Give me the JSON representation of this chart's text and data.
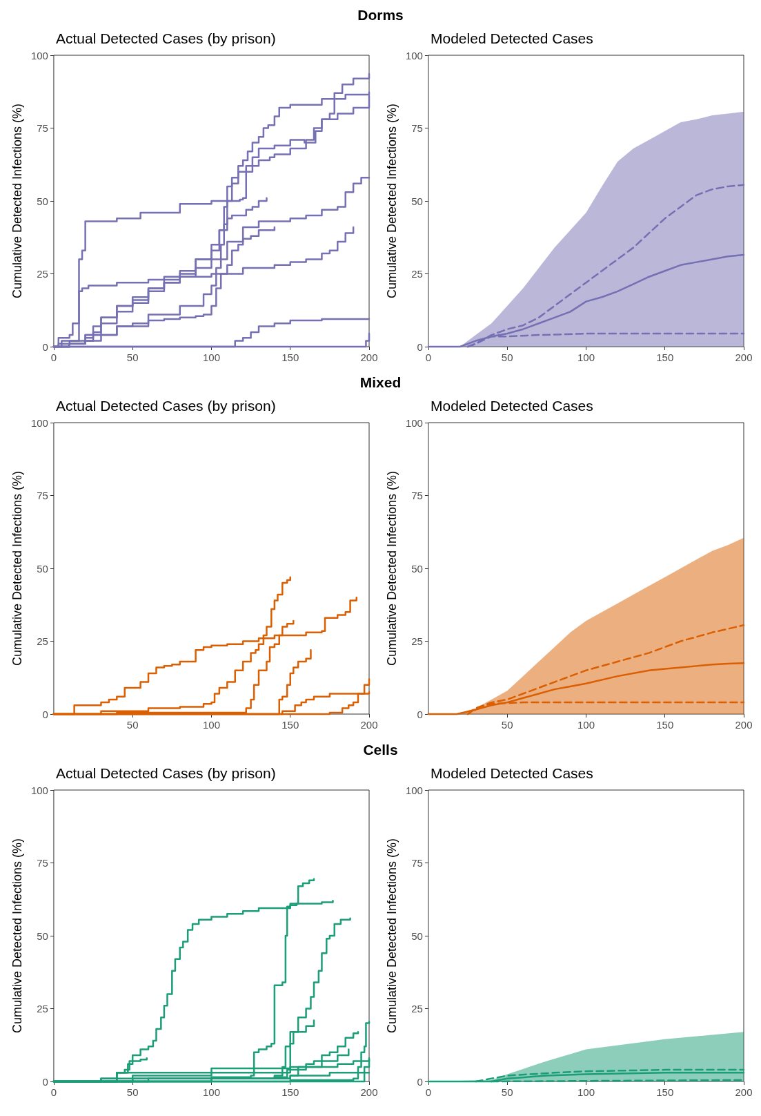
{
  "chart_data": [
    {
      "type": "step",
      "title": "Dorms",
      "subtitle": "Actual Detected Cases (by prison)",
      "ylabel": "Cumulative Detected Infections (%)",
      "xlim": [
        0,
        200
      ],
      "ylim": [
        0,
        100
      ],
      "xticks": [
        0,
        50,
        100,
        150,
        200
      ],
      "yticks": [
        0,
        25,
        50,
        75,
        100
      ],
      "marker": "none",
      "series": [
        {
          "color": "#7570b3",
          "x": [
            0,
            5,
            20,
            40,
            60,
            80,
            95,
            100,
            103,
            106,
            108,
            110,
            113,
            117,
            120,
            123,
            126,
            130,
            133,
            136,
            140,
            143,
            150,
            170,
            185,
            200
          ],
          "values": [
            0,
            2,
            4,
            7,
            11,
            14,
            18,
            21,
            27,
            35,
            48,
            55,
            58,
            62,
            64,
            67,
            70,
            72,
            75,
            76,
            79,
            82,
            83,
            85,
            86.5,
            87.3
          ]
        },
        {
          "color": "#7570b3",
          "x": [
            0,
            3,
            10,
            12,
            15,
            16,
            18,
            20,
            40,
            55,
            80,
            100,
            118,
            120,
            122,
            126,
            130,
            140,
            150,
            156,
            159,
            163,
            166,
            170,
            175,
            178,
            183,
            190,
            200
          ],
          "values": [
            0,
            3,
            4,
            8,
            8,
            30,
            33,
            43,
            44,
            46,
            49,
            50,
            50.5,
            51,
            60,
            65,
            68,
            69,
            71,
            71,
            70,
            70,
            74,
            78,
            80,
            87,
            90,
            92,
            93.6
          ]
        },
        {
          "color": "#7570b3",
          "x": [
            0,
            10,
            20,
            25,
            30,
            40,
            50,
            60,
            70,
            80,
            90,
            100,
            105,
            110,
            113,
            117,
            122,
            130,
            137,
            140,
            150,
            160,
            165,
            170,
            180,
            190,
            200
          ],
          "values": [
            0,
            1,
            3,
            5,
            10,
            14,
            16,
            20,
            24,
            26,
            30,
            33,
            40,
            50,
            56,
            60,
            62,
            64,
            65,
            66,
            68,
            71,
            75,
            78,
            80,
            82,
            86
          ]
        },
        {
          "color": "#7570b3",
          "x": [
            0,
            10,
            20,
            25,
            30,
            40,
            50,
            60,
            70,
            80,
            90,
            100,
            105,
            108,
            110,
            113,
            118,
            122,
            126,
            130,
            135
          ],
          "values": [
            0,
            1,
            2,
            4,
            8,
            12,
            15,
            19,
            22,
            25,
            30,
            35,
            40,
            42,
            44,
            45,
            45,
            47,
            48,
            50,
            51
          ]
        },
        {
          "color": "#7570b3",
          "x": [
            0,
            3,
            10,
            15,
            16,
            18,
            22,
            40,
            60,
            80,
            100,
            120,
            140,
            150,
            160,
            170,
            175,
            180,
            185,
            190
          ],
          "values": [
            0,
            1,
            2,
            2,
            19,
            20,
            21,
            22,
            23,
            24,
            25,
            27,
            28,
            29,
            30,
            32,
            33,
            36,
            39,
            41
          ]
        },
        {
          "color": "#7570b3",
          "x": [
            0,
            10,
            20,
            25,
            30,
            40,
            50,
            60,
            70,
            80,
            90,
            100,
            110,
            120,
            130,
            150,
            160,
            170,
            180,
            185,
            190,
            195,
            200
          ],
          "values": [
            0,
            1,
            4,
            7,
            10,
            14,
            17,
            20,
            22,
            24,
            27,
            30,
            36,
            41,
            43,
            44,
            45,
            47,
            48,
            53,
            56,
            58,
            58
          ]
        },
        {
          "color": "#7570b3",
          "x": [
            0,
            10,
            20,
            30,
            40,
            50,
            60,
            70,
            80,
            90,
            95,
            100,
            103,
            106,
            110,
            113,
            117,
            120,
            125,
            130,
            140
          ],
          "values": [
            0,
            1,
            2,
            4,
            7,
            8,
            9,
            9.5,
            10,
            10.5,
            11,
            14,
            20,
            25,
            28,
            33,
            35,
            37,
            38,
            40,
            41
          ]
        },
        {
          "color": "#7570b3",
          "x": [
            0,
            113,
            115,
            120,
            125,
            130,
            140,
            150,
            170,
            200
          ],
          "values": [
            0,
            0,
            2,
            3,
            5,
            7,
            8,
            9,
            9.5,
            9.5
          ]
        },
        {
          "color": "#7570b3",
          "x": [
            0,
            196,
            198,
            200
          ],
          "values": [
            0,
            0,
            2,
            4.5
          ]
        }
      ]
    },
    {
      "type": "line",
      "subtitle": "Modeled Detected Cases",
      "ylabel": "Cumulative Detected Infections (%)",
      "xlim": [
        0,
        200
      ],
      "ylim": [
        0,
        100
      ],
      "xticks": [
        0,
        50,
        100,
        150,
        200
      ],
      "yticks": [
        0,
        25,
        50,
        75,
        100
      ],
      "marker": "none",
      "series": [
        {
          "color": "#7570b3",
          "line_style": "solid",
          "x": [
            0,
            20,
            30,
            40,
            50,
            60,
            70,
            80,
            90,
            100,
            110,
            120,
            130,
            140,
            150,
            160,
            170,
            180,
            190,
            200
          ],
          "values": [
            0,
            0,
            2,
            3.5,
            4.5,
            6,
            8,
            10,
            12,
            15.5,
            17,
            19,
            21.5,
            24,
            26,
            28,
            29,
            30,
            31,
            31.5
          ],
          "lower": [
            0,
            0,
            0,
            0,
            0,
            0,
            0,
            0,
            0,
            0,
            0,
            0,
            0,
            0,
            0,
            0,
            0,
            0,
            0,
            0
          ],
          "upper": [
            0,
            0,
            4,
            8,
            14,
            20,
            27,
            34,
            40,
            46,
            55,
            63.5,
            68,
            71,
            74,
            77,
            78,
            79.4,
            80,
            80.6
          ]
        },
        {
          "color": "#7570b3",
          "line_style": "dashed",
          "x": [
            25,
            30,
            40,
            50,
            60,
            70,
            80,
            90,
            100,
            110,
            120,
            130,
            140,
            150,
            160,
            170,
            180,
            190,
            200
          ],
          "values": [
            0,
            1,
            4,
            6,
            7.3,
            10,
            14,
            18,
            22,
            26,
            30,
            34,
            39,
            44,
            48,
            52,
            54,
            55,
            55.5
          ]
        },
        {
          "color": "#7570b3",
          "line_style": "dashed",
          "x": [
            25,
            30,
            40,
            50,
            70,
            100,
            200
          ],
          "values": [
            0,
            1,
            3.5,
            3.5,
            4,
            4.5,
            4.5
          ]
        }
      ]
    },
    {
      "type": "step",
      "title": "Mixed",
      "subtitle": "Actual Detected Cases (by prison)",
      "ylabel": "Cumulative Detected Infections (%)",
      "xlim": [
        0,
        200
      ],
      "ylim": [
        0,
        100
      ],
      "xticks": [
        50,
        100,
        150,
        200
      ],
      "yticks": [
        0,
        25,
        50,
        75,
        100
      ],
      "marker": "none",
      "series": [
        {
          "color": "#d95f02",
          "x": [
            0,
            10,
            13,
            25,
            30,
            35,
            40,
            45,
            50,
            55,
            60,
            65,
            70,
            75,
            80,
            85,
            90,
            95,
            100,
            110,
            120,
            130,
            140,
            160,
            170,
            172,
            180,
            185,
            188,
            192
          ],
          "values": [
            0,
            0,
            3,
            3,
            4,
            5,
            6,
            9,
            9,
            11,
            14,
            16,
            16.5,
            17,
            18,
            18,
            22,
            23,
            23.5,
            24,
            25,
            26,
            27,
            28,
            28.5,
            33,
            34,
            35,
            39,
            40
          ]
        },
        {
          "color": "#d95f02",
          "x": [
            0,
            30,
            60,
            80,
            95,
            100,
            102,
            105,
            110,
            115,
            120,
            125,
            128,
            130,
            133,
            135,
            138,
            140,
            142,
            145,
            148,
            150
          ],
          "values": [
            0,
            1,
            2,
            2.5,
            3.5,
            4,
            7,
            9,
            11,
            15,
            18,
            21,
            22,
            24,
            27,
            30,
            36,
            39,
            41,
            45,
            46,
            47
          ]
        },
        {
          "color": "#d95f02",
          "x": [
            0,
            40,
            100,
            119,
            122,
            125,
            127,
            130,
            135,
            137,
            140,
            143,
            145,
            148,
            152
          ],
          "values": [
            0,
            0.5,
            0.5,
            0.5,
            2,
            5,
            10,
            15,
            18,
            23,
            24,
            27,
            30,
            31,
            32
          ]
        },
        {
          "color": "#d95f02",
          "x": [
            0,
            142,
            143,
            145,
            148,
            150,
            152,
            155,
            160,
            163
          ],
          "values": [
            0,
            0,
            5,
            6,
            10,
            14,
            16,
            18,
            19,
            22
          ]
        },
        {
          "color": "#d95f02",
          "x": [
            0,
            140,
            145,
            150,
            153,
            157,
            160,
            165,
            170,
            175,
            200
          ],
          "values": [
            0,
            0,
            1,
            1,
            3,
            4,
            5,
            6,
            6,
            7,
            7.5
          ]
        },
        {
          "color": "#d95f02",
          "x": [
            0,
            160,
            175,
            183,
            187,
            190,
            193,
            197,
            200
          ],
          "values": [
            0,
            0,
            0.5,
            2,
            3,
            4,
            7,
            10,
            12
          ]
        }
      ]
    },
    {
      "type": "line",
      "subtitle": "Modeled Detected Cases",
      "ylabel": "Cumulative Detected Infections (%)",
      "xlim": [
        0,
        200
      ],
      "ylim": [
        0,
        100
      ],
      "xticks": [
        50,
        100,
        150,
        200
      ],
      "yticks": [
        0,
        25,
        50,
        75,
        100
      ],
      "marker": "none",
      "series": [
        {
          "color": "#d95f02",
          "line_style": "solid",
          "x": [
            0,
            18,
            30,
            40,
            50,
            60,
            70,
            80,
            90,
            100,
            120,
            140,
            150,
            160,
            170,
            180,
            190,
            200
          ],
          "values": [
            0,
            0,
            1.5,
            3,
            4,
            5.5,
            7,
            8.5,
            9.5,
            10.5,
            13,
            15,
            15.5,
            16,
            16.5,
            17,
            17.3,
            17.5
          ],
          "lower": [
            0,
            0,
            0,
            0,
            0,
            0,
            0,
            0,
            0,
            0,
            0,
            0,
            0,
            0,
            0,
            0,
            0,
            0
          ],
          "upper": [
            0,
            0,
            2,
            5,
            8,
            13,
            18,
            23,
            28,
            32,
            38,
            44,
            47,
            50,
            53,
            56,
            58,
            60.5
          ]
        },
        {
          "color": "#d95f02",
          "line_style": "dashed",
          "x": [
            25,
            30,
            40,
            50,
            60,
            80,
            100,
            120,
            140,
            160,
            180,
            200
          ],
          "values": [
            0,
            2,
            4,
            5,
            7,
            11,
            15,
            18,
            21,
            25,
            28,
            30.5
          ]
        },
        {
          "color": "#d95f02",
          "line_style": "dashed",
          "x": [
            25,
            30,
            40,
            60,
            200
          ],
          "values": [
            0,
            2,
            3.5,
            4,
            4
          ]
        }
      ]
    },
    {
      "type": "step",
      "title": "Cells",
      "subtitle": "Actual Detected Cases (by prison)",
      "ylabel": "Cumulative Detected Infections (%)",
      "xlim": [
        0,
        200
      ],
      "ylim": [
        0,
        100
      ],
      "xticks": [
        0,
        50,
        100,
        150,
        200
      ],
      "yticks": [
        0,
        25,
        50,
        75,
        100
      ],
      "marker": "none",
      "series": [
        {
          "color": "#1b9e77",
          "x": [
            0,
            30,
            40,
            45,
            48,
            50,
            55,
            60,
            63,
            65,
            68,
            70,
            72,
            75,
            77,
            80,
            82,
            85,
            88,
            92,
            100,
            110,
            120,
            130,
            150,
            170,
            177
          ],
          "values": [
            0,
            1,
            3,
            4,
            7,
            9,
            11,
            12,
            14,
            18,
            22,
            26,
            30,
            38,
            42,
            46,
            48,
            52,
            54,
            55.5,
            56.5,
            57.5,
            58.5,
            59.5,
            61,
            61.5,
            62
          ]
        },
        {
          "color": "#1b9e77",
          "x": [
            0,
            40,
            100,
            125,
            127,
            130,
            135,
            138,
            140,
            145,
            147,
            148,
            150,
            154,
            155,
            158,
            162,
            165
          ],
          "values": [
            0,
            1,
            1.5,
            2,
            10,
            11,
            12,
            13,
            33,
            34,
            50,
            60,
            60.5,
            61,
            67,
            68,
            69,
            69.5
          ]
        },
        {
          "color": "#1b9e77",
          "x": [
            0,
            60,
            140,
            148,
            150,
            152,
            155,
            160,
            163,
            165,
            168,
            170,
            173,
            175,
            178,
            182,
            188
          ],
          "values": [
            0,
            1,
            1.5,
            4,
            13,
            17,
            22,
            25,
            29,
            34,
            38,
            44,
            49,
            50,
            54,
            55.5,
            56
          ]
        },
        {
          "color": "#1b9e77",
          "x": [
            0,
            30,
            40,
            47,
            50,
            55,
            59
          ],
          "values": [
            0,
            1,
            3,
            6,
            7,
            7.5,
            8
          ]
        },
        {
          "color": "#1b9e77",
          "x": [
            0,
            100,
            140,
            145,
            147,
            150,
            160,
            165
          ],
          "values": [
            0,
            1,
            2,
            5,
            12,
            17,
            19,
            21
          ]
        },
        {
          "color": "#1b9e77",
          "x": [
            0,
            100,
            150,
            155,
            160,
            165,
            170,
            175,
            180,
            185,
            190,
            193
          ],
          "values": [
            0,
            1,
            2,
            5,
            6,
            7,
            9,
            10,
            12,
            15,
            16.5,
            17
          ]
        },
        {
          "color": "#1b9e77",
          "x": [
            0,
            150,
            190,
            193,
            195,
            197,
            198,
            200
          ],
          "values": [
            0,
            0.5,
            1,
            5,
            10,
            12,
            20,
            20.5
          ]
        },
        {
          "color": "#1b9e77",
          "x": [
            0,
            50,
            100,
            150,
            160,
            170,
            180,
            187
          ],
          "values": [
            0,
            2,
            3,
            4,
            5,
            7,
            9,
            11
          ]
        },
        {
          "color": "#1b9e77",
          "x": [
            0,
            40,
            100,
            150,
            180,
            190,
            200
          ],
          "values": [
            0,
            3,
            4.5,
            5,
            6,
            7,
            8
          ]
        },
        {
          "color": "#1b9e77",
          "x": [
            0,
            50,
            150,
            175,
            200
          ],
          "values": [
            0,
            1,
            2,
            3,
            3
          ]
        },
        {
          "color": "#1b9e77",
          "x": [
            0,
            195,
            197,
            200
          ],
          "values": [
            0,
            0,
            5,
            7.5
          ]
        }
      ]
    },
    {
      "type": "line",
      "subtitle": "Modeled Detected Cases",
      "ylabel": "Cumulative Detected Infections (%)",
      "xlim": [
        0,
        200
      ],
      "ylim": [
        0,
        100
      ],
      "xticks": [
        0,
        50,
        100,
        150,
        200
      ],
      "yticks": [
        0,
        25,
        50,
        75,
        100
      ],
      "marker": "none",
      "series": [
        {
          "color": "#1b9e77",
          "line_style": "solid",
          "x": [
            0,
            40,
            50,
            75,
            100,
            150,
            200
          ],
          "values": [
            0,
            0,
            1,
            2,
            2.5,
            3,
            3
          ],
          "lower": [
            0,
            0,
            0,
            0,
            0,
            0,
            0
          ],
          "upper": [
            0,
            0.5,
            2.5,
            7,
            11,
            14.5,
            17
          ]
        },
        {
          "color": "#1b9e77",
          "line_style": "dashed",
          "x": [
            30,
            40,
            50,
            80,
            100,
            150,
            200
          ],
          "values": [
            0,
            1,
            2,
            3,
            3.5,
            4,
            4
          ]
        },
        {
          "color": "#1b9e77",
          "line_style": "dashed",
          "x": [
            40,
            200
          ],
          "values": [
            0,
            0.5
          ]
        }
      ]
    }
  ]
}
